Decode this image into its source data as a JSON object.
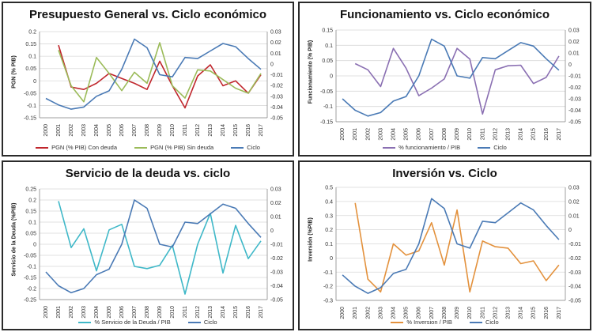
{
  "charts": [
    {
      "title": "Presupuesto General vs. Ciclo económico",
      "ylabel": "PGN (% PIB)",
      "legend": [
        {
          "label": "PGN (% PIB) Con deuda",
          "color": "#c0262c"
        },
        {
          "label": "PGN (% PIB) Sin deuda",
          "color": "#9bbb59"
        },
        {
          "label": "Ciclo",
          "color": "#4a7ab5"
        }
      ]
    },
    {
      "title": "Funcionamiento vs. Ciclo económico",
      "ylabel": "Funcionamiento (% PIB)",
      "legend": [
        {
          "label": "% funcionamiento / PIB",
          "color": "#8a6fb2"
        },
        {
          "label": "Ciclo",
          "color": "#4a7ab5"
        }
      ]
    },
    {
      "title": "Servicio de la deuda vs. ciclo",
      "ylabel": "Servicio de la Deuda (%PIB)",
      "legend": [
        {
          "label": "% Servicio de la Deuda / PIB",
          "color": "#3fb8c8"
        },
        {
          "label": "Ciclo",
          "color": "#4a7ab5"
        }
      ]
    },
    {
      "title": "Inversión vs. Ciclo",
      "ylabel": "Inversión (%PIB)",
      "legend": [
        {
          "label": "% Inversion / PIB",
          "color": "#e3913c"
        },
        {
          "label": "Ciclo",
          "color": "#4a7ab5"
        }
      ]
    }
  ],
  "chart_data": [
    {
      "type": "line",
      "title": "Presupuesto General vs. Ciclo económico",
      "ylabel": "PGN (% PIB)",
      "x": [
        "2000",
        "2001",
        "2002",
        "2003",
        "2004",
        "2005",
        "2006",
        "2007",
        "2008",
        "2009",
        "2010",
        "2011",
        "2012",
        "2013",
        "2014",
        "2015",
        "2016",
        "2017"
      ],
      "left_axis": {
        "min": -0.15,
        "max": 0.2,
        "step": 0.05,
        "ticks": [
          "-0.15",
          "-0.1",
          "-0.05",
          "0",
          "0.05",
          "0.1",
          "0.15",
          "0.2"
        ]
      },
      "right_axis": {
        "min": -0.05,
        "max": 0.03,
        "step": 0.01,
        "ticks": [
          "-0.05",
          "-0.04",
          "-0.03",
          "-0.02",
          "-0.01",
          "0",
          "0.01",
          "0.02",
          "0.03"
        ]
      },
      "series": [
        {
          "name": "PGN (% PIB) Con deuda",
          "axis": "left",
          "color": "#c0262c",
          "values": [
            null,
            0.145,
            -0.025,
            -0.035,
            -0.01,
            0.03,
            0.01,
            -0.01,
            -0.035,
            0.08,
            -0.02,
            -0.11,
            0.02,
            0.065,
            -0.02,
            0.0,
            -0.05,
            0.025
          ]
        },
        {
          "name": "PGN (% PIB) Sin deuda",
          "axis": "left",
          "color": "#9bbb59",
          "values": [
            null,
            0.125,
            -0.02,
            -0.085,
            0.095,
            0.03,
            -0.04,
            0.035,
            -0.01,
            0.155,
            -0.02,
            -0.07,
            0.045,
            0.04,
            0.005,
            -0.03,
            -0.05,
            0.03
          ]
        },
        {
          "name": "Ciclo",
          "axis": "right",
          "color": "#4a7ab5",
          "values": [
            -0.032,
            -0.038,
            -0.042,
            -0.04,
            -0.03,
            -0.025,
            -0.005,
            0.023,
            0.015,
            -0.01,
            -0.012,
            0.006,
            0.005,
            0.012,
            0.019,
            0.016,
            0.005,
            -0.005
          ]
        }
      ]
    },
    {
      "type": "line",
      "title": "Funcionamiento vs. Ciclo económico",
      "ylabel": "Funcionamiento (% PIB)",
      "x": [
        "2000",
        "2001",
        "2002",
        "2003",
        "2004",
        "2005",
        "2006",
        "2007",
        "2008",
        "2009",
        "2010",
        "2011",
        "2012",
        "2013",
        "2014",
        "2015",
        "2016",
        "2017"
      ],
      "left_axis": {
        "min": -0.15,
        "max": 0.15,
        "step": 0.05,
        "ticks": [
          "-0.15",
          "-0.1",
          "-0.05",
          "0",
          "0.05",
          "0.1",
          "0.15"
        ]
      },
      "right_axis": {
        "min": -0.05,
        "max": 0.03,
        "step": 0.01,
        "ticks": [
          "-0.05",
          "-0.04",
          "-0.03",
          "-0.02",
          "-0.01",
          "0",
          "0.01",
          "0.02",
          "0.03"
        ]
      },
      "series": [
        {
          "name": "% funcionamiento / PIB",
          "axis": "left",
          "color": "#8a6fb2",
          "values": [
            null,
            0.04,
            0.02,
            -0.035,
            0.09,
            0.025,
            -0.065,
            -0.04,
            -0.01,
            0.09,
            0.055,
            -0.125,
            0.02,
            0.033,
            0.035,
            -0.025,
            -0.005,
            0.065
          ]
        },
        {
          "name": "Ciclo",
          "axis": "right",
          "color": "#4a7ab5",
          "values": [
            -0.03,
            -0.04,
            -0.045,
            -0.042,
            -0.032,
            -0.028,
            -0.01,
            0.022,
            0.016,
            -0.01,
            -0.012,
            0.006,
            0.005,
            0.012,
            0.019,
            0.016,
            0.005,
            -0.005
          ]
        }
      ]
    },
    {
      "type": "line",
      "title": "Servicio de la deuda vs. ciclo",
      "ylabel": "Servicio de la Deuda (%PIB)",
      "x": [
        "2000",
        "2001",
        "2002",
        "2003",
        "2004",
        "2005",
        "2006",
        "2007",
        "2008",
        "2009",
        "2010",
        "2011",
        "2012",
        "2013",
        "2014",
        "2015",
        "2016",
        "2017"
      ],
      "left_axis": {
        "min": -0.25,
        "max": 0.25,
        "step": 0.05,
        "ticks": [
          "-0.25",
          "-0.2",
          "-0.15",
          "-0.1",
          "-0.05",
          "0",
          "0.05",
          "0.1",
          "0.15",
          "0.2",
          "0.25"
        ]
      },
      "right_axis": {
        "min": -0.05,
        "max": 0.03,
        "step": 0.01,
        "ticks": [
          "-0.05",
          "-0.04",
          "-0.03",
          "-0.02",
          "-0.01",
          "0",
          "0.01",
          "0.02",
          "0.03"
        ]
      },
      "series": [
        {
          "name": "% Servicio de la Deuda / PIB",
          "axis": "left",
          "color": "#3fb8c8",
          "values": [
            null,
            0.195,
            -0.015,
            0.07,
            -0.12,
            0.065,
            0.09,
            -0.1,
            -0.11,
            -0.095,
            -0.005,
            -0.225,
            0.0,
            0.14,
            -0.13,
            0.085,
            -0.065,
            0.015
          ]
        },
        {
          "name": "Ciclo",
          "axis": "right",
          "color": "#4a7ab5",
          "values": [
            -0.03,
            -0.04,
            -0.045,
            -0.042,
            -0.032,
            -0.028,
            -0.01,
            0.022,
            0.016,
            -0.01,
            -0.012,
            0.006,
            0.005,
            0.012,
            0.019,
            0.016,
            0.005,
            -0.005
          ]
        }
      ]
    },
    {
      "type": "line",
      "title": "Inversión vs. Ciclo",
      "ylabel": "Inversión (%PIB)",
      "x": [
        "2000",
        "2001",
        "2002",
        "2003",
        "2004",
        "2005",
        "2006",
        "2007",
        "2008",
        "2009",
        "2010",
        "2011",
        "2012",
        "2013",
        "2014",
        "2015",
        "2016",
        "2017"
      ],
      "left_axis": {
        "min": -0.3,
        "max": 0.5,
        "step": 0.1,
        "ticks": [
          "-0.3",
          "-0.2",
          "-0.1",
          "0",
          "0.1",
          "0.2",
          "0.3",
          "0.4",
          "0.5"
        ]
      },
      "right_axis": {
        "min": -0.05,
        "max": 0.03,
        "step": 0.01,
        "ticks": [
          "-0.05",
          "-0.04",
          "-0.03",
          "-0.02",
          "-0.01",
          "0",
          "0.01",
          "0.02",
          "0.03"
        ]
      },
      "series": [
        {
          "name": "% Inversion / PIB",
          "axis": "left",
          "color": "#e3913c",
          "values": [
            null,
            0.39,
            -0.15,
            -0.24,
            0.1,
            0.02,
            0.05,
            0.25,
            -0.05,
            0.34,
            -0.24,
            0.12,
            0.08,
            0.07,
            -0.04,
            -0.02,
            -0.16,
            -0.05
          ]
        },
        {
          "name": "Ciclo",
          "axis": "right",
          "color": "#4a7ab5",
          "values": [
            -0.032,
            -0.04,
            -0.045,
            -0.041,
            -0.031,
            -0.028,
            -0.01,
            0.022,
            0.015,
            -0.01,
            -0.013,
            0.006,
            0.005,
            0.012,
            0.019,
            0.014,
            0.003,
            -0.007
          ]
        }
      ]
    }
  ]
}
